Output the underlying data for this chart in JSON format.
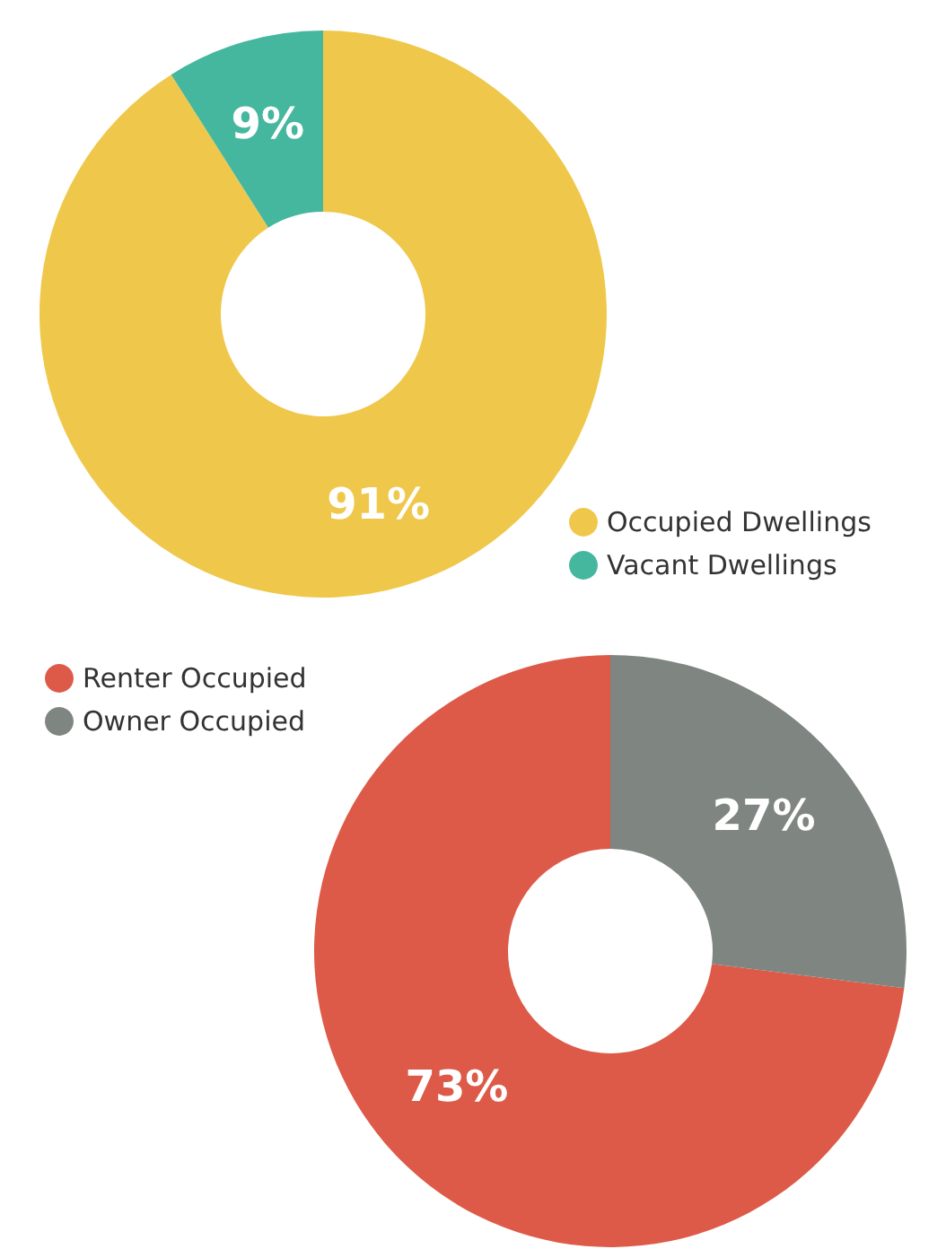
{
  "chart_data": [
    {
      "type": "donut",
      "categories": [
        "Occupied Dwellings",
        "Vacant Dwellings"
      ],
      "values": [
        91,
        9
      ],
      "value_labels": [
        "91%",
        "9%"
      ],
      "colors": [
        "#efc84b",
        "#45b79f"
      ],
      "legend": "bottom right"
    },
    {
      "type": "donut",
      "categories": [
        "Renter Occupied",
        "Owner Occupied"
      ],
      "values": [
        73,
        27
      ],
      "value_labels": [
        "73%",
        "27%"
      ],
      "colors": [
        "#de5a48",
        "#7f8580"
      ],
      "legend": "top left"
    }
  ]
}
